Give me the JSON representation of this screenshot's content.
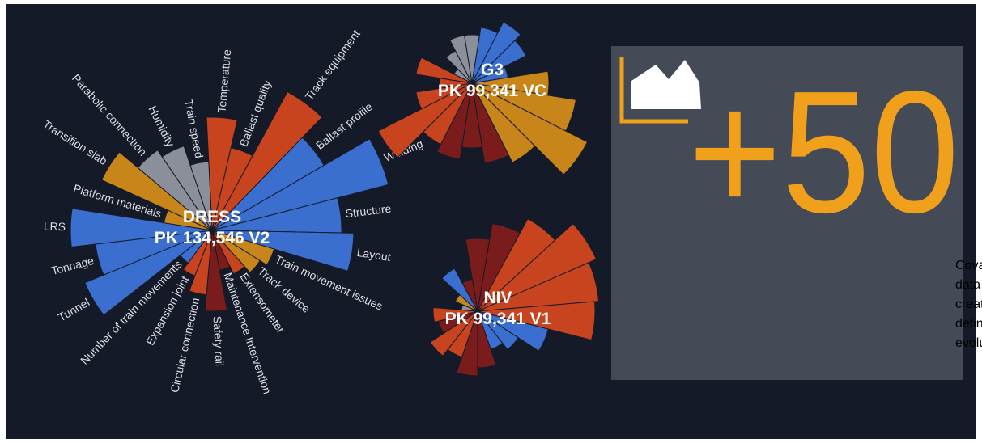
{
  "chart_data": [
    {
      "type": "polar-bar",
      "title": "DRESS",
      "subtitle": "PK 134,546 V2",
      "categories": [
        "Temperature",
        "Ballast quality",
        "Track equipment",
        "Ballast profile",
        "Welding",
        "Structure",
        "Layout",
        "Train movement issues",
        "Track device",
        "Extensometer",
        "Maintenance Intervention",
        "Safety rail",
        "Circular connection",
        "Expansion joint",
        "Number of train movements",
        "Tunnel",
        "Tonnage",
        "LRS",
        "Platform materials",
        "Transition slab",
        "Parabolic connection",
        "Humidity",
        "Train speed"
      ],
      "values": [
        140,
        105,
        195,
        160,
        225,
        160,
        175,
        80,
        70,
        60,
        50,
        100,
        80,
        60,
        50,
        170,
        145,
        175,
        60,
        150,
        120,
        110,
        85
      ],
      "colors": [
        "#c8441f",
        "#c8441f",
        "#c8441f",
        "#3a6fcf",
        "#3a6fcf",
        "#3a6fcf",
        "#3a6fcf",
        "#c8861a",
        "#c8861a",
        "#c8441f",
        "#7a1c1c",
        "#7a1c1c",
        "#c8441f",
        "#c8441f",
        "#3a6fcf",
        "#3a6fcf",
        "#3a6fcf",
        "#3a6fcf",
        "#c8861a",
        "#c8861a",
        "#8a8f9a",
        "#8a8f9a",
        "#8a8f9a"
      ]
    },
    {
      "type": "polar-bar",
      "title": "G3",
      "subtitle": "PK 99,341 VC",
      "values": [
        60,
        70,
        85,
        75,
        45,
        95,
        130,
        160,
        110,
        100,
        80,
        95,
        85,
        130,
        70,
        40,
        70,
        25,
        45,
        60
      ],
      "colors": [
        "#8a8f9a",
        "#3a6fcf",
        "#3a6fcf",
        "#3a6fcf",
        "#3a6fcf",
        "#c8861a",
        "#c8861a",
        "#c8861a",
        "#c8861a",
        "#7a1c1c",
        "#7a1c1c",
        "#7a1c1c",
        "#c8441f",
        "#c8441f",
        "#c8441f",
        "#c8441f",
        "#c8441f",
        "#8a8f9a",
        "#8a8f9a",
        "#8a8f9a"
      ]
    },
    {
      "type": "polar-bar",
      "title": "NIV",
      "subtitle": "PK 99,341 V1",
      "values": [
        90,
        110,
        130,
        160,
        150,
        145,
        90,
        60,
        50,
        70,
        80,
        60,
        70,
        50,
        55,
        20,
        30,
        60,
        40
      ],
      "colors": [
        "#7a1c1c",
        "#7a1c1c",
        "#c8441f",
        "#c8441f",
        "#c8441f",
        "#c8441f",
        "#3a6fcf",
        "#3a6fcf",
        "#3a6fcf",
        "#7a1c1c",
        "#7a1c1c",
        "#c8441f",
        "#c8441f",
        "#7a1c1c",
        "#c8441f",
        "#8a8f9a",
        "#c8861a",
        "#3a6fcf",
        "#7a1c1c"
      ]
    }
  ],
  "panel": {
    "headline": "+50",
    "text": [
      "Covariates derived from available",
      "data sources are used to automatically",
      "create the identity map of defects,",
      "define their origins, and anticipate their",
      "evolution"
    ]
  }
}
